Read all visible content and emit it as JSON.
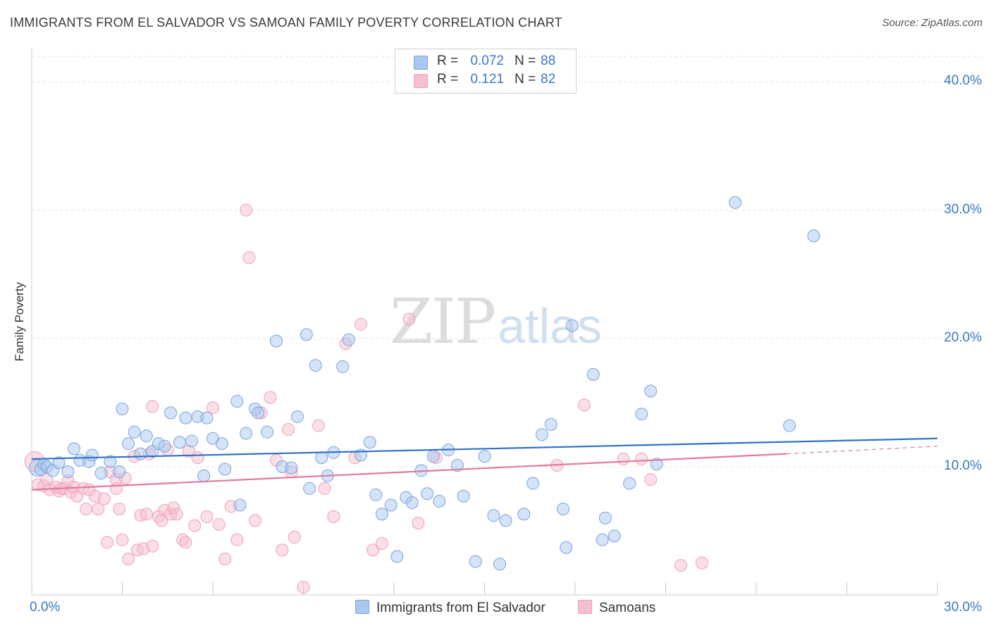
{
  "header": {
    "title": "IMMIGRANTS FROM EL SALVADOR VS SAMOAN FAMILY POVERTY CORRELATION CHART",
    "source": "Source: ZipAtlas.com"
  },
  "watermark": {
    "zip": "ZIP",
    "atlas": "atlas"
  },
  "legend_top": {
    "rows": [
      {
        "r_label": "R =",
        "r_value": "0.072",
        "n_label": "N =",
        "n_value": "88"
      },
      {
        "r_label": "R =",
        "r_value": "0.121",
        "n_label": "N =",
        "n_value": "82"
      }
    ]
  },
  "chart_data": {
    "type": "scatter",
    "title": "IMMIGRANTS FROM EL SALVADOR VS SAMOAN FAMILY POVERTY CORRELATION CHART",
    "ylabel": "Family Poverty",
    "xlabel": "",
    "xlim": [
      0,
      30
    ],
    "ylim": [
      0,
      42
    ],
    "x_tick_labels": [
      "0.0%",
      "30.0%"
    ],
    "y_ticks": [
      10,
      20,
      30,
      40
    ],
    "y_tick_labels": [
      "10.0%",
      "20.0%",
      "30.0%",
      "40.0%"
    ],
    "grid": true,
    "legend_position": "top-center",
    "colors": {
      "blue_fill": "#a9c8ef",
      "blue_stroke": "#7aa5dc",
      "blue_line": "#2f72c8",
      "pink_fill": "#f6bfd0",
      "pink_stroke": "#eea0b8",
      "pink_line": "#e07aa0",
      "tick_text": "#3a78c2"
    },
    "series": [
      {
        "name": "Immigrants from El Salvador",
        "r": 0.072,
        "n": 88,
        "trend": {
          "x": [
            0,
            30
          ],
          "y": [
            10.6,
            12.2
          ]
        },
        "points": [
          [
            0.2,
            9.9
          ],
          [
            0.3,
            9.8
          ],
          [
            0.4,
            10.2
          ],
          [
            0.5,
            10.0
          ],
          [
            0.7,
            9.7
          ],
          [
            0.9,
            10.3
          ],
          [
            1.2,
            9.6
          ],
          [
            1.4,
            11.4
          ],
          [
            1.6,
            10.5
          ],
          [
            1.9,
            10.4
          ],
          [
            2.0,
            10.9
          ],
          [
            2.3,
            9.5
          ],
          [
            2.6,
            10.4
          ],
          [
            2.9,
            9.6
          ],
          [
            3.0,
            14.5
          ],
          [
            3.2,
            11.8
          ],
          [
            3.4,
            12.7
          ],
          [
            3.6,
            11.0
          ],
          [
            3.8,
            12.4
          ],
          [
            4.0,
            11.2
          ],
          [
            4.2,
            11.8
          ],
          [
            4.4,
            11.6
          ],
          [
            4.6,
            14.2
          ],
          [
            4.9,
            11.9
          ],
          [
            5.1,
            13.8
          ],
          [
            5.3,
            12.0
          ],
          [
            5.5,
            13.9
          ],
          [
            5.8,
            13.8
          ],
          [
            5.7,
            9.3
          ],
          [
            6.0,
            12.2
          ],
          [
            6.3,
            11.8
          ],
          [
            6.4,
            9.8
          ],
          [
            6.8,
            15.1
          ],
          [
            6.9,
            7.0
          ],
          [
            7.1,
            12.6
          ],
          [
            7.4,
            14.5
          ],
          [
            7.5,
            14.2
          ],
          [
            7.8,
            12.7
          ],
          [
            8.1,
            19.8
          ],
          [
            8.3,
            10.0
          ],
          [
            8.6,
            9.9
          ],
          [
            8.8,
            13.9
          ],
          [
            9.1,
            20.3
          ],
          [
            9.2,
            8.3
          ],
          [
            9.4,
            17.9
          ],
          [
            9.6,
            10.7
          ],
          [
            9.8,
            9.3
          ],
          [
            10.0,
            11.1
          ],
          [
            10.3,
            17.8
          ],
          [
            10.5,
            19.9
          ],
          [
            10.9,
            10.9
          ],
          [
            11.2,
            11.9
          ],
          [
            11.4,
            7.8
          ],
          [
            11.6,
            6.3
          ],
          [
            11.9,
            7.0
          ],
          [
            12.1,
            3.0
          ],
          [
            12.4,
            7.6
          ],
          [
            12.6,
            7.2
          ],
          [
            12.9,
            9.7
          ],
          [
            13.1,
            7.9
          ],
          [
            13.3,
            10.8
          ],
          [
            13.5,
            7.3
          ],
          [
            13.8,
            11.3
          ],
          [
            14.1,
            10.1
          ],
          [
            14.3,
            7.7
          ],
          [
            14.7,
            2.6
          ],
          [
            15.0,
            10.8
          ],
          [
            15.3,
            6.2
          ],
          [
            15.5,
            2.4
          ],
          [
            15.7,
            5.8
          ],
          [
            16.3,
            6.3
          ],
          [
            16.6,
            8.7
          ],
          [
            16.9,
            12.5
          ],
          [
            17.2,
            13.3
          ],
          [
            17.6,
            6.7
          ],
          [
            17.7,
            3.7
          ],
          [
            17.9,
            21.0
          ],
          [
            18.6,
            17.2
          ],
          [
            18.9,
            4.3
          ],
          [
            19.0,
            6.0
          ],
          [
            19.3,
            4.6
          ],
          [
            19.8,
            8.7
          ],
          [
            20.2,
            14.1
          ],
          [
            20.5,
            15.9
          ],
          [
            20.7,
            10.2
          ],
          [
            23.3,
            30.6
          ],
          [
            25.1,
            13.2
          ],
          [
            25.9,
            28.0
          ]
        ]
      },
      {
        "name": "Samoans",
        "r": 0.121,
        "n": 82,
        "trend": {
          "x": [
            0,
            25
          ],
          "y": [
            8.2,
            11.0
          ]
        },
        "trend_dashed": {
          "x": [
            25,
            30
          ],
          "y": [
            11.0,
            11.6
          ]
        },
        "points": [
          [
            0.1,
            10.4
          ],
          [
            0.2,
            8.6
          ],
          [
            0.4,
            8.5
          ],
          [
            0.5,
            9.0
          ],
          [
            0.6,
            8.2
          ],
          [
            0.8,
            8.4
          ],
          [
            0.9,
            8.1
          ],
          [
            1.0,
            8.3
          ],
          [
            1.1,
            8.3
          ],
          [
            1.2,
            8.9
          ],
          [
            1.3,
            8.0
          ],
          [
            1.4,
            8.4
          ],
          [
            1.5,
            7.7
          ],
          [
            1.7,
            8.3
          ],
          [
            1.8,
            6.7
          ],
          [
            1.9,
            8.2
          ],
          [
            2.1,
            7.7
          ],
          [
            2.2,
            6.7
          ],
          [
            2.4,
            7.5
          ],
          [
            2.5,
            4.1
          ],
          [
            2.6,
            9.6
          ],
          [
            2.8,
            8.3
          ],
          [
            2.8,
            9.0
          ],
          [
            2.9,
            6.7
          ],
          [
            3.0,
            4.3
          ],
          [
            3.1,
            9.1
          ],
          [
            3.2,
            2.8
          ],
          [
            3.4,
            10.8
          ],
          [
            3.5,
            3.5
          ],
          [
            3.6,
            6.2
          ],
          [
            3.7,
            3.6
          ],
          [
            3.8,
            6.3
          ],
          [
            3.9,
            11.0
          ],
          [
            4.0,
            14.7
          ],
          [
            4.0,
            3.8
          ],
          [
            4.2,
            6.1
          ],
          [
            4.3,
            5.8
          ],
          [
            4.4,
            6.6
          ],
          [
            4.5,
            11.3
          ],
          [
            4.6,
            6.3
          ],
          [
            4.7,
            6.8
          ],
          [
            4.8,
            6.3
          ],
          [
            5.0,
            4.3
          ],
          [
            5.1,
            4.1
          ],
          [
            5.2,
            11.2
          ],
          [
            5.4,
            5.4
          ],
          [
            5.5,
            10.7
          ],
          [
            5.8,
            6.1
          ],
          [
            6.0,
            14.6
          ],
          [
            6.2,
            5.5
          ],
          [
            6.4,
            2.8
          ],
          [
            6.6,
            6.9
          ],
          [
            6.8,
            4.3
          ],
          [
            7.1,
            30.0
          ],
          [
            7.2,
            26.3
          ],
          [
            7.4,
            5.8
          ],
          [
            7.6,
            14.2
          ],
          [
            7.9,
            15.4
          ],
          [
            8.1,
            10.5
          ],
          [
            8.3,
            3.5
          ],
          [
            8.5,
            12.9
          ],
          [
            8.6,
            9.6
          ],
          [
            8.7,
            4.5
          ],
          [
            9.0,
            0.6
          ],
          [
            9.5,
            13.2
          ],
          [
            9.7,
            8.3
          ],
          [
            10.0,
            6.1
          ],
          [
            10.4,
            19.6
          ],
          [
            10.7,
            10.7
          ],
          [
            10.9,
            21.1
          ],
          [
            11.3,
            3.5
          ],
          [
            11.6,
            4.0
          ],
          [
            12.5,
            21.5
          ],
          [
            12.8,
            5.6
          ],
          [
            13.4,
            10.7
          ],
          [
            17.4,
            10.1
          ],
          [
            18.3,
            14.8
          ],
          [
            19.6,
            10.6
          ],
          [
            20.2,
            10.6
          ],
          [
            20.5,
            9.0
          ],
          [
            21.5,
            2.3
          ],
          [
            22.2,
            2.5
          ]
        ]
      }
    ]
  },
  "legend_bottom": {
    "items": [
      {
        "label": "Immigrants from El Salvador"
      },
      {
        "label": "Samoans"
      }
    ]
  }
}
